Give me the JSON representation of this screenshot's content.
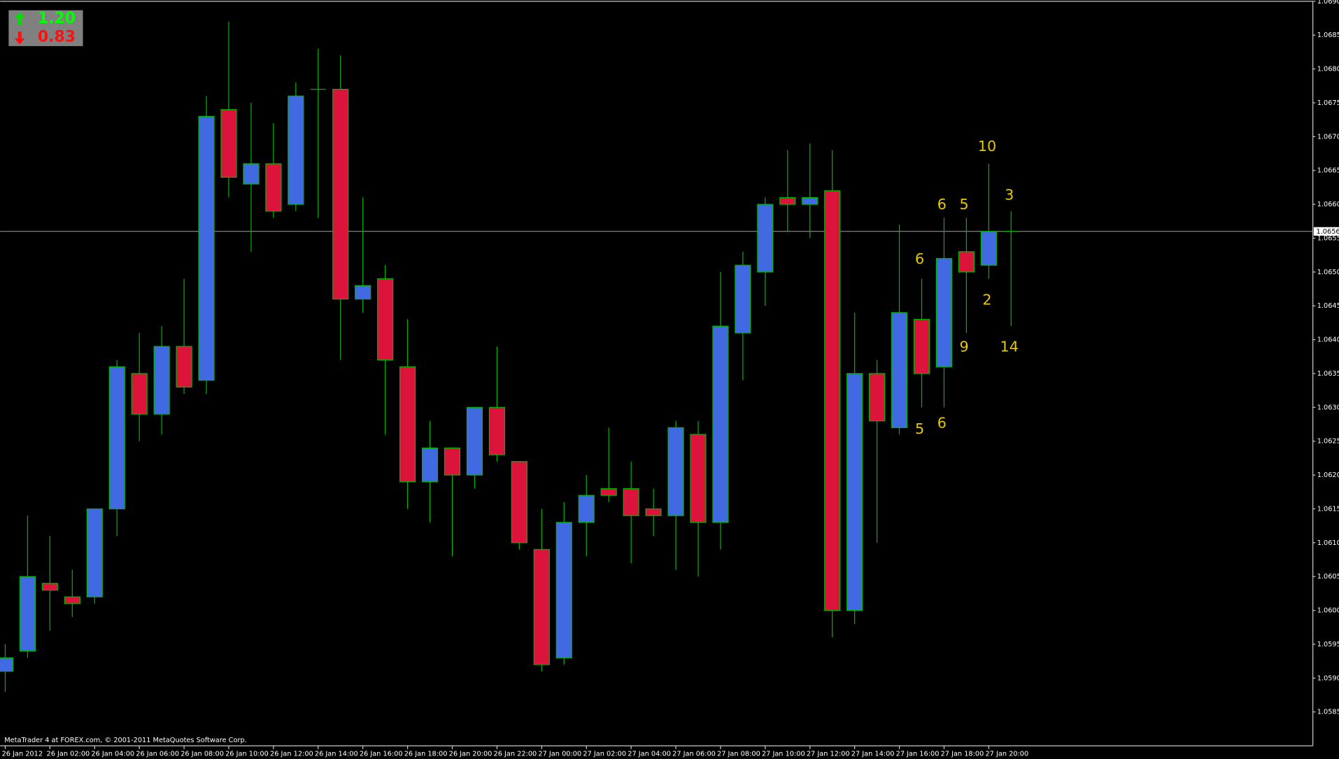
{
  "chart_data": {
    "type": "candlestick",
    "categories": [
      "26 Jan 2012",
      null,
      "26 Jan 02:00",
      null,
      "26 Jan 04:00",
      null,
      "26 Jan 06:00",
      null,
      "26 Jan 08:00",
      null,
      "26 Jan 10:00",
      null,
      "26 Jan 12:00",
      null,
      "26 Jan 14:00",
      null,
      "26 Jan 16:00",
      null,
      "26 Jan 18:00",
      null,
      "26 Jan 20:00",
      null,
      "26 Jan 22:00",
      null,
      "27 Jan 00:00",
      null,
      "27 Jan 02:00",
      null,
      "27 Jan 04:00",
      null,
      "27 Jan 06:00",
      null,
      "27 Jan 08:00",
      null,
      "27 Jan 10:00",
      null,
      "27 Jan 12:00",
      null,
      "27 Jan 14:00",
      null,
      "27 Jan 16:00",
      null,
      "27 Jan 18:00",
      null,
      "27 Jan 20:00",
      null
    ],
    "open": [
      1.0591,
      1.0594,
      1.0604,
      1.0602,
      1.0602,
      1.0615,
      1.0635,
      1.0629,
      1.0639,
      1.0634,
      1.0674,
      1.0663,
      1.0666,
      1.066,
      1.0677,
      1.0677,
      1.0646,
      1.0649,
      1.0636,
      1.0619,
      1.0624,
      1.062,
      1.063,
      1.0622,
      1.0609,
      1.0593,
      1.0613,
      1.0618,
      1.0618,
      1.0615,
      1.0614,
      1.0626,
      1.0613,
      1.0641,
      1.065,
      1.0661,
      1.066,
      1.0662,
      1.06,
      1.0635,
      1.0627,
      1.0643,
      1.0636,
      1.0653,
      1.0651,
      1.0656
    ],
    "high": [
      1.0595,
      1.0614,
      1.0611,
      1.0606,
      1.0615,
      1.0637,
      1.0641,
      1.0642,
      1.0649,
      1.0676,
      1.0687,
      1.0675,
      1.0672,
      1.0678,
      1.0683,
      1.0682,
      1.0661,
      1.0651,
      1.0643,
      1.0628,
      1.0624,
      1.063,
      1.0639,
      1.0622,
      1.0615,
      1.0616,
      1.062,
      1.0627,
      1.0622,
      1.0618,
      1.0628,
      1.0628,
      1.065,
      1.0653,
      1.0661,
      1.0668,
      1.0669,
      1.0668,
      1.0644,
      1.0637,
      1.0657,
      1.0649,
      1.0658,
      1.0658,
      1.0666,
      1.0659
    ],
    "low": [
      1.0588,
      1.0593,
      1.0597,
      1.0599,
      1.0601,
      1.0611,
      1.0625,
      1.0626,
      1.0632,
      1.0632,
      1.0661,
      1.0653,
      1.0658,
      1.0659,
      1.0658,
      1.0637,
      1.0644,
      1.0626,
      1.0615,
      1.0613,
      1.0608,
      1.0618,
      1.0622,
      1.0609,
      1.0591,
      1.0592,
      1.0608,
      1.0616,
      1.0607,
      1.0611,
      1.0606,
      1.0605,
      1.0609,
      1.0634,
      1.0645,
      1.0656,
      1.0655,
      1.0596,
      1.0598,
      1.061,
      1.0626,
      1.063,
      1.063,
      1.0641,
      1.0649,
      1.0642
    ],
    "close": [
      1.0593,
      1.0605,
      1.0603,
      1.0601,
      1.0615,
      1.0636,
      1.0629,
      1.0639,
      1.0633,
      1.0673,
      1.0664,
      1.0666,
      1.0659,
      1.0676,
      1.0677,
      1.0646,
      1.0648,
      1.0637,
      1.0619,
      1.0624,
      1.062,
      1.063,
      1.0623,
      1.061,
      1.0592,
      1.0613,
      1.0617,
      1.0617,
      1.0614,
      1.0614,
      1.0627,
      1.0613,
      1.0642,
      1.0651,
      1.066,
      1.066,
      1.0661,
      1.06,
      1.0635,
      1.0628,
      1.0644,
      1.0635,
      1.0652,
      1.065,
      1.0656,
      1.0656
    ],
    "up_color": "#4169e1",
    "down_color": "#dc143c",
    "wick_color": "#00b400",
    "ylim": [
      1.058,
      1.069
    ],
    "yticks": [
      1.0585,
      {
        "value": 1.059,
        "label": "1.0590"
      },
      1.0595,
      {
        "value": 1.06,
        "label": "1.0600"
      },
      1.0605,
      {
        "value": 1.061,
        "label": "1.0610"
      },
      1.0615,
      {
        "value": 1.062,
        "label": "1.0620"
      },
      1.0625,
      {
        "value": 1.063,
        "label": "1.0630"
      },
      1.0635,
      {
        "value": 1.064,
        "label": "1.0640"
      },
      1.0645,
      {
        "value": 1.065,
        "label": "1.0650"
      },
      1.0655,
      {
        "value": 1.066,
        "label": "1.0660"
      },
      1.0665,
      {
        "value": 1.067,
        "label": "1.0670"
      },
      1.0675,
      {
        "value": 1.068,
        "label": "1.0680"
      },
      1.0685,
      {
        "value": 1.069,
        "label": "1.0690"
      }
    ],
    "current_price": 1.0656,
    "annotations": [
      "10",
      "6",
      "5",
      "3",
      "6",
      "2",
      "9",
      "14",
      "5",
      "6"
    ],
    "indicator": {
      "up": "1.20",
      "down": "0.83"
    },
    "footer": "MetaTrader 4 at FOREX.com, © 2001-2011 MetaQuotes Software Corp."
  }
}
